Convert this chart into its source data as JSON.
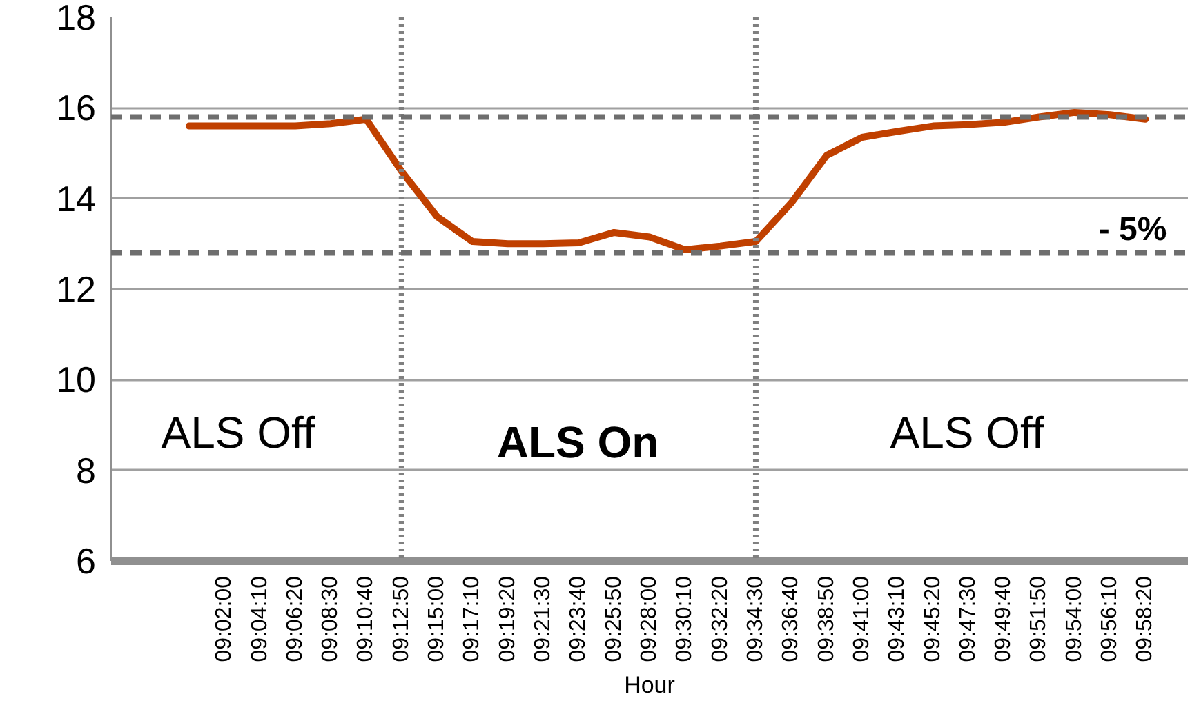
{
  "chart_data": {
    "type": "line",
    "xlabel": "Hour",
    "categories": [
      null,
      "09:02:00",
      "09:04:10",
      "09:06:20",
      "09:08:30",
      "09:10:40",
      "09:12:50",
      "09:15:00",
      "09:17:10",
      "09:19:20",
      "09:21:30",
      "09:23:40",
      "09:25:50",
      "09:28:00",
      "09:30:10",
      "09:32:20",
      "09:34:30",
      "09:36:40",
      "09:38:50",
      "09:41:00",
      "09:43:10",
      "09:45:20",
      "09:47:30",
      "09:49:40",
      "09:51:50",
      "09:54:00",
      "09:56:10",
      "09:58:20"
    ],
    "series": [
      {
        "color": "#c04000",
        "values": [
          15.6,
          15.6,
          15.6,
          15.6,
          15.65,
          15.75,
          14.6,
          13.6,
          13.05,
          13.0,
          13.0,
          13.02,
          13.25,
          13.15,
          12.87,
          12.95,
          13.05,
          13.9,
          14.95,
          15.35,
          15.48,
          15.6,
          15.63,
          15.68,
          15.8,
          15.9,
          15.85,
          15.75
        ]
      }
    ],
    "ylim": [
      6,
      18
    ],
    "yticks": [
      6,
      8,
      10,
      12,
      14,
      16,
      18
    ],
    "grid": "y",
    "marker": "none",
    "line_style": "solid",
    "ref_lines": [
      {
        "axis": "x",
        "value": "09:12:50",
        "color": "#808080",
        "line_style": "dotted"
      },
      {
        "axis": "x",
        "value": "09:34:30",
        "color": "#808080",
        "line_style": "dotted"
      },
      {
        "axis": "y",
        "value": 15.8,
        "color": "#6e6e6e",
        "line_style": "dashed"
      },
      {
        "axis": "y",
        "value": 12.8,
        "color": "#6e6e6e",
        "line_style": "dashed"
      }
    ],
    "annotations": [
      "ALS Off",
      "ALS On",
      "ALS Off",
      "- 5%"
    ]
  }
}
